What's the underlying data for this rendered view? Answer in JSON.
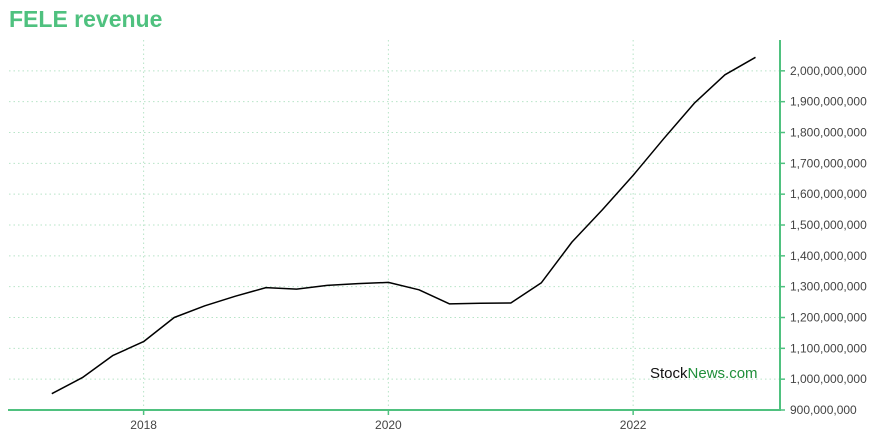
{
  "title": "FELE revenue",
  "watermark": {
    "part1": "Stock",
    "part2": "News.com"
  },
  "colors": {
    "accent": "#4fc17f",
    "line": "#000000",
    "grid": "#b7e4c7"
  },
  "chart_data": {
    "type": "line",
    "title": "FELE revenue",
    "xlabel": "",
    "ylabel": "",
    "xlim": [
      2016.9,
      2023.2
    ],
    "ylim": [
      900000000,
      2100000000
    ],
    "x_ticks": [
      {
        "value": 2018,
        "label": "2018"
      },
      {
        "value": 2020,
        "label": "2020"
      },
      {
        "value": 2022,
        "label": "2022"
      }
    ],
    "y_ticks": [
      {
        "value": 900000000,
        "label": "900,000,000"
      },
      {
        "value": 1000000000,
        "label": "1,000,000,000"
      },
      {
        "value": 1100000000,
        "label": "1,100,000,000"
      },
      {
        "value": 1200000000,
        "label": "1,200,000,000"
      },
      {
        "value": 1300000000,
        "label": "1,300,000,000"
      },
      {
        "value": 1400000000,
        "label": "1,400,000,000"
      },
      {
        "value": 1500000000,
        "label": "1,500,000,000"
      },
      {
        "value": 1600000000,
        "label": "1,600,000,000"
      },
      {
        "value": 1700000000,
        "label": "1,700,000,000"
      },
      {
        "value": 1800000000,
        "label": "1,800,000,000"
      },
      {
        "value": 1900000000,
        "label": "1,900,000,000"
      },
      {
        "value": 2000000000,
        "label": "2,000,000,000"
      }
    ],
    "grid": true,
    "y_axis_position": "right",
    "series": [
      {
        "x": [
          2017.25,
          2017.5,
          2017.75,
          2018.0,
          2018.25,
          2018.5,
          2018.75,
          2019.0,
          2019.25,
          2019.5,
          2019.75,
          2020.0,
          2020.25,
          2020.5,
          2020.75,
          2021.0,
          2021.25,
          2021.5,
          2021.75,
          2022.0,
          2022.25,
          2022.5,
          2022.75,
          2023.0
        ],
        "values": [
          953000000,
          1005000000,
          1077000000,
          1122000000,
          1200000000,
          1238000000,
          1269000000,
          1297000000,
          1292000000,
          1304000000,
          1310000000,
          1314000000,
          1290000000,
          1244000000,
          1246000000,
          1247000000,
          1313000000,
          1445000000,
          1550000000,
          1661000000,
          1780000000,
          1895000000,
          1987000000,
          2044000000
        ]
      }
    ]
  }
}
